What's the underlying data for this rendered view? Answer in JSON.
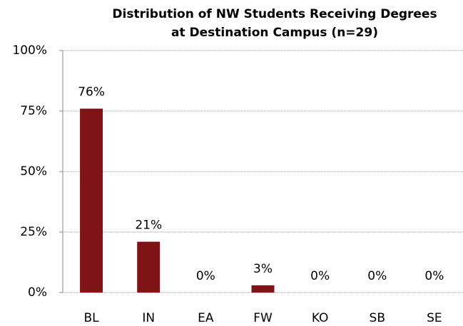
{
  "chart_data": {
    "type": "bar",
    "title": [
      "Distribution of NW Students Receiving Degrees",
      "at Destination Campus (n=29)"
    ],
    "categories": [
      "BL",
      "IN",
      "EA",
      "FW",
      "KO",
      "SB",
      "SE"
    ],
    "values": [
      76,
      21,
      0,
      3,
      0,
      0,
      0
    ],
    "value_labels": [
      "76%",
      "21%",
      "0%",
      "3%",
      "0%",
      "0%",
      "0%"
    ],
    "color": "#7f1416",
    "ylim": [
      0,
      100
    ],
    "yticks": [
      {
        "value": 0,
        "label": "0%"
      },
      {
        "value": 25,
        "label": "25%"
      },
      {
        "value": 50,
        "label": "50%"
      },
      {
        "value": 75,
        "label": "75%"
      },
      {
        "value": 100,
        "label": "100%"
      }
    ],
    "grid": true
  }
}
